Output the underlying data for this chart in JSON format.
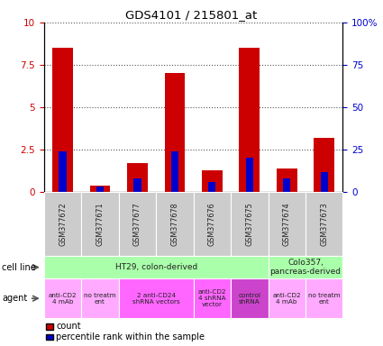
{
  "title": "GDS4101 / 215801_at",
  "samples": [
    "GSM377672",
    "GSM377671",
    "GSM377677",
    "GSM377678",
    "GSM377676",
    "GSM377675",
    "GSM377674",
    "GSM377673"
  ],
  "count_values": [
    8.5,
    0.4,
    1.7,
    7.0,
    1.3,
    8.5,
    1.4,
    3.2
  ],
  "percentile_values": [
    24,
    3,
    8,
    24,
    6,
    20,
    8,
    12
  ],
  "ylim_left": [
    0,
    10
  ],
  "ylim_right": [
    0,
    100
  ],
  "yticks_left": [
    0,
    2.5,
    5,
    7.5,
    10
  ],
  "yticks_right": [
    0,
    25,
    50,
    75,
    100
  ],
  "ytick_labels_right": [
    "0",
    "25",
    "50",
    "75",
    "100%"
  ],
  "bar_color_red": "#cc0000",
  "bar_color_blue": "#0000cc",
  "cell_line_groups": [
    {
      "label": "HT29, colon-derived",
      "start": 0,
      "end": 6,
      "color": "#aaffaa"
    },
    {
      "label": "Colo357,\npancreas-derived",
      "start": 6,
      "end": 8,
      "color": "#aaffaa"
    }
  ],
  "agent_groups": [
    {
      "label": "anti-CD2\n4 mAb",
      "start": 0,
      "end": 1,
      "color": "#ffaaff"
    },
    {
      "label": "no treatm\nent",
      "start": 1,
      "end": 2,
      "color": "#ffaaff"
    },
    {
      "label": "2 anti-CD24\nshRNA vectors",
      "start": 2,
      "end": 4,
      "color": "#ff66ff"
    },
    {
      "label": "anti-CD2\n4 shRNA\nvector",
      "start": 4,
      "end": 5,
      "color": "#ff66ff"
    },
    {
      "label": "control\nshRNA",
      "start": 5,
      "end": 6,
      "color": "#cc44cc"
    },
    {
      "label": "anti-CD2\n4 mAb",
      "start": 6,
      "end": 7,
      "color": "#ffaaff"
    },
    {
      "label": "no treatm\nent",
      "start": 7,
      "end": 8,
      "color": "#ffaaff"
    }
  ],
  "bg_color": "#ffffff",
  "label_color_left": "#cc0000",
  "label_color_right": "#0000cc",
  "legend_count_color": "#cc0000",
  "legend_pct_color": "#0000cc",
  "red_bar_width": 0.55,
  "blue_bar_width": 0.2,
  "sample_box_color": "#cccccc",
  "grid_linestyle": "dotted",
  "grid_color": "#555555"
}
